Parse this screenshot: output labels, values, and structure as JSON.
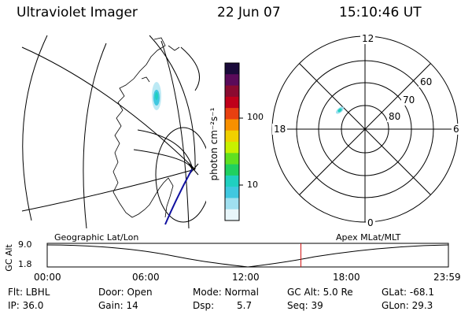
{
  "header": {
    "instrument": "Ultraviolet Imager",
    "date": "22 Jun 07",
    "time": "15:10:46 UT"
  },
  "colorbar": {
    "unit_label": "photon cm⁻²s⁻¹",
    "ticks": [
      "100",
      "10"
    ],
    "colors": [
      "#1a0a3a",
      "#5a0a5a",
      "#8a0a30",
      "#c0001a",
      "#e84010",
      "#f89000",
      "#f0d000",
      "#c8f000",
      "#60e020",
      "#20d060",
      "#20d0c0",
      "#40c8e0",
      "#a0e0f0",
      "#e8f6fa"
    ]
  },
  "polar_plot": {
    "mlt_labels": {
      "top": "12",
      "bottom": "0",
      "left": "18",
      "right": "6"
    },
    "lat_labels": [
      "60",
      "70",
      "80"
    ]
  },
  "altitude_plot": {
    "y_axis_label": "GC Alt",
    "y_ticks": [
      "9.0",
      "1.8"
    ],
    "left_title": "Geographic Lat/Lon",
    "right_title": "Apex MLat/MLT",
    "x_ticks": [
      "00:00",
      "06:00",
      "12:00",
      "18:00",
      "23:59"
    ],
    "marker_color": "#d01010",
    "marker_time": "15:10"
  },
  "info": {
    "flt": "Flt: LBHL",
    "ip": "IP: 36.0",
    "door": "Door: Open",
    "gain": "Gain: 14",
    "mode": "Mode: Normal",
    "dsp_label": "Dsp:",
    "dsp_value": "5.7",
    "gcalt": "GC Alt: 5.0 Re",
    "seq": "Seq: 39",
    "glat": "GLat: -68.1",
    "glon": "GLon: 29.3"
  }
}
